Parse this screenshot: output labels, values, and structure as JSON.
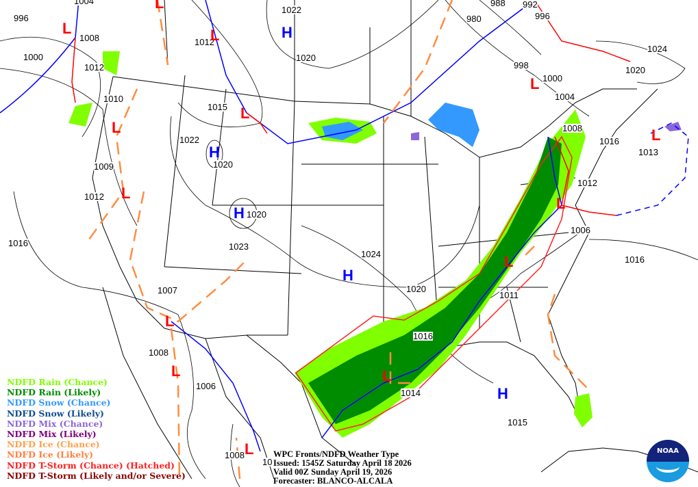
{
  "title_block": {
    "line1": "WPC Fronts/NDFD Weather Type",
    "line2": "Issued: 1545Z Saturday April 18 2026",
    "line3": "Valid 00Z Sunday April 19, 2026",
    "line4": "Forecaster: BLANCO-ALCALA"
  },
  "legend": [
    {
      "label": "NDFD Rain (Chance)",
      "color": "#80ff00"
    },
    {
      "label": "NDFD Rain (Likely)",
      "color": "#008c00"
    },
    {
      "label": "NDFD Snow (Chance)",
      "color": "#3399ff"
    },
    {
      "label": "NDFD Snow (Likely)",
      "color": "#104e8b"
    },
    {
      "label": "NDFD Mix (Chance)",
      "color": "#8c66d9"
    },
    {
      "label": "NDFD Mix (Likely)",
      "color": "#800080"
    },
    {
      "label": "NDFD Ice (Chance)",
      "color": "#ffa04d"
    },
    {
      "label": "NDFD Ice (Likely)",
      "color": "#ff8040"
    },
    {
      "label": "NDFD T-Storm (Chance) (Hatched)",
      "color": "#ff2020"
    },
    {
      "label": "NDFD T-Storm (Likely and/or Severe)",
      "color": "#8b0000"
    }
  ],
  "isobar_labels": [
    "996",
    "1004",
    "1008",
    "1000",
    "1012",
    "1010",
    "1012",
    "1022",
    "1020",
    "988",
    "992",
    "996",
    "980",
    "998",
    "1000",
    "1004",
    "1024",
    "1020",
    "1008",
    "1016",
    "1013",
    "1015",
    "1022",
    "1020",
    "1009",
    "1012",
    "1020",
    "1016",
    "1023",
    "1024",
    "1012",
    "1006",
    "1016",
    "1020",
    "1011",
    "1007",
    "1016",
    "1008",
    "1006",
    "1014",
    "1015",
    "1008",
    "10"
  ],
  "pressure_centers": {
    "high_label": "H",
    "low_label": "L",
    "high_color": "#0000ff",
    "low_color": "#ff0000"
  },
  "logo": {
    "text": "NOAA"
  },
  "colors": {
    "cold_front": "#0000ff",
    "warm_front": "#ff0000",
    "trough": "#ff8c40"
  }
}
